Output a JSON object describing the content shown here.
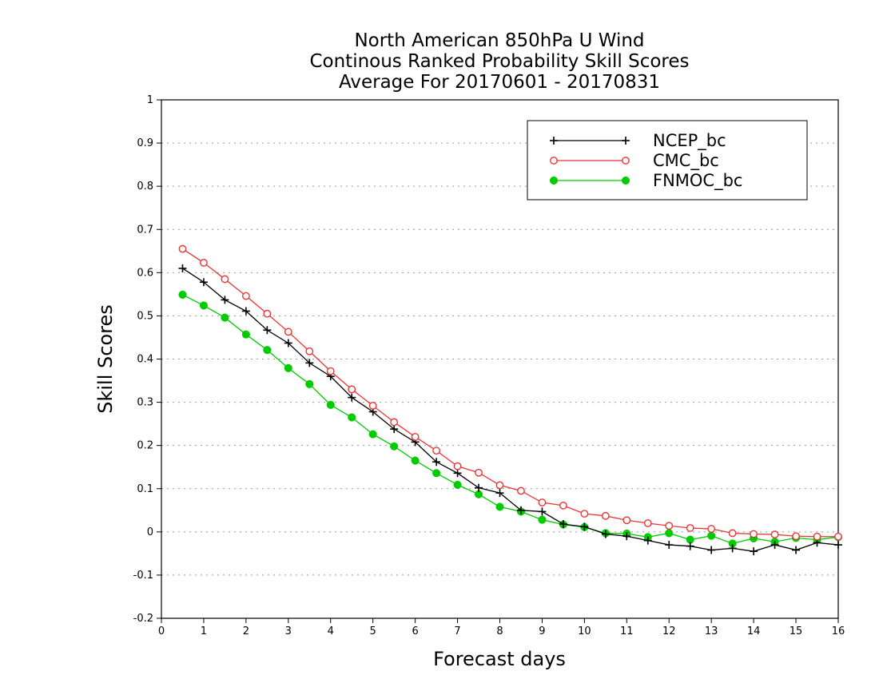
{
  "chart_data": {
    "type": "line",
    "title": [
      "North American 850hPa U Wind",
      "Continous Ranked Probability Skill Scores",
      "Average For 20170601 - 20170831"
    ],
    "xlabel": "Forecast days",
    "ylabel": "Skill Scores",
    "xlim": [
      0,
      16
    ],
    "ylim": [
      -0.2,
      1
    ],
    "x_ticks": [
      "0",
      "1",
      "2",
      "3",
      "4",
      "5",
      "6",
      "7",
      "8",
      "9",
      "10",
      "11",
      "12",
      "13",
      "14",
      "15",
      "16"
    ],
    "y_ticks": [
      "-0.2",
      "-0.1",
      "0",
      "0.1",
      "0.2",
      "0.3",
      "0.4",
      "0.5",
      "0.6",
      "0.7",
      "0.8",
      "0.9",
      "1"
    ],
    "grid": "horizontal dotted",
    "legend_position": "top-right",
    "x": [
      0.5,
      1,
      1.5,
      2,
      2.5,
      3,
      3.5,
      4,
      4.5,
      5,
      5.5,
      6,
      6.5,
      7,
      7.5,
      8,
      8.5,
      9,
      9.5,
      10,
      10.5,
      11,
      11.5,
      12,
      12.5,
      13,
      13.5,
      14,
      14.5,
      15,
      15.5,
      16
    ],
    "series": [
      {
        "name": "NCEP_bc",
        "color": "#000000",
        "marker": "plus",
        "values": [
          0.61,
          0.578,
          0.537,
          0.511,
          0.467,
          0.437,
          0.391,
          0.36,
          0.311,
          0.278,
          0.238,
          0.208,
          0.162,
          0.136,
          0.102,
          0.09,
          0.05,
          0.047,
          0.018,
          0.012,
          -0.005,
          -0.01,
          -0.02,
          -0.03,
          -0.033,
          -0.042,
          -0.038,
          -0.045,
          -0.03,
          -0.042,
          -0.025,
          -0.03
        ]
      },
      {
        "name": "CMC_bc",
        "color": "#ee3333",
        "marker": "open-circle",
        "values": [
          0.655,
          0.623,
          0.585,
          0.546,
          0.505,
          0.463,
          0.418,
          0.372,
          0.33,
          0.292,
          0.254,
          0.22,
          0.188,
          0.152,
          0.137,
          0.108,
          0.095,
          0.068,
          0.061,
          0.042,
          0.037,
          0.027,
          0.02,
          0.014,
          0.009,
          0.007,
          -0.003,
          -0.005,
          -0.006,
          -0.01,
          -0.011,
          -0.011
        ]
      },
      {
        "name": "FNMOC_bc",
        "color": "#00cc00",
        "marker": "filled-circle",
        "values": [
          0.549,
          0.524,
          0.496,
          0.457,
          0.421,
          0.379,
          0.342,
          0.294,
          0.265,
          0.226,
          0.198,
          0.165,
          0.136,
          0.109,
          0.087,
          0.058,
          0.047,
          0.028,
          0.017,
          0.011,
          -0.003,
          -0.004,
          -0.012,
          -0.003,
          -0.018,
          -0.009,
          -0.027,
          -0.015,
          -0.023,
          -0.014,
          -0.018,
          -0.012
        ]
      }
    ]
  }
}
